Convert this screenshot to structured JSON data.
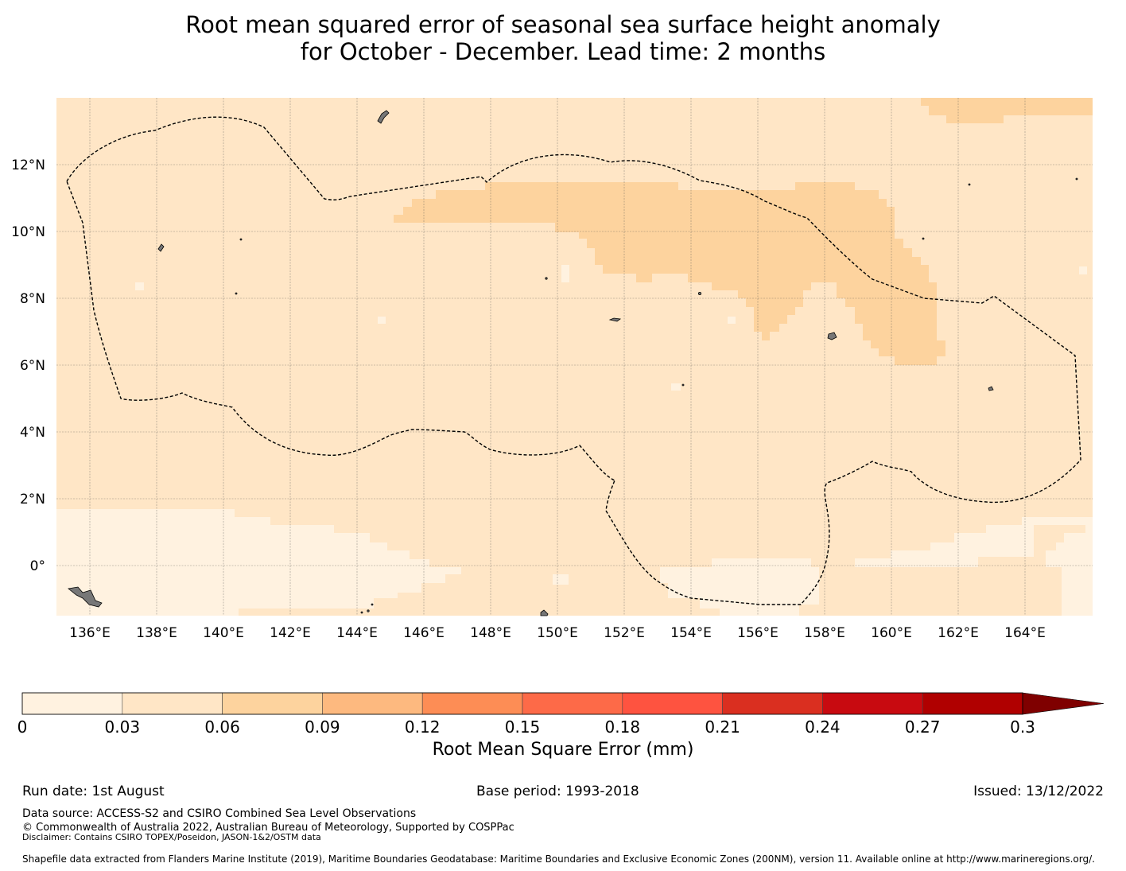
{
  "title_line1": "Root mean squared error of seasonal sea surface height anomaly",
  "title_line2": "for October - December. Lead time: 2 months",
  "lon_ticks": [
    "136°E",
    "138°E",
    "140°E",
    "142°E",
    "144°E",
    "146°E",
    "148°E",
    "150°E",
    "152°E",
    "154°E",
    "156°E",
    "158°E",
    "160°E",
    "162°E",
    "164°E"
  ],
  "lat_ticks": [
    "12°N",
    "10°N",
    "8°N",
    "6°N",
    "4°N",
    "2°N",
    "0°"
  ],
  "colorbar": {
    "ticks": [
      "0",
      "0.03",
      "0.06",
      "0.09",
      "0.12",
      "0.15",
      "0.18",
      "0.21",
      "0.24",
      "0.27",
      "0.3"
    ],
    "colors": [
      "#fff2e0",
      "#ffe6c6",
      "#fdd39e",
      "#fdb97f",
      "#fd8d55",
      "#fd6a48",
      "#fe5340",
      "#da2f20",
      "#c80a10",
      "#b00000"
    ],
    "extend_color": "#7f0000",
    "label": "Root Mean Square Error (mm)"
  },
  "footer": {
    "run_date": "Run date: 1st August",
    "base_period": "Base period: 1993-2018",
    "issued": "Issued: 13/12/2022",
    "data_source": "Data source: ACCESS-S2 and CSIRO Combined Sea Level Observations",
    "copyright": "© Commonwealth of Australia 2022, Australian Bureau of Meteorology, Supported by COSPPac",
    "disclaimer": "Disclaimer: Contains CSIRO TOPEX/Poseidon, JASON-1&2/OSTM data",
    "shapefile": "Shapefile data extracted from Flanders Marine Institute (2019), Maritime Boundaries Geodatabase: Maritime Boundaries and Exclusive Economic Zones (200NM), version 11. Available online at http://www.marineregions.org/."
  }
}
